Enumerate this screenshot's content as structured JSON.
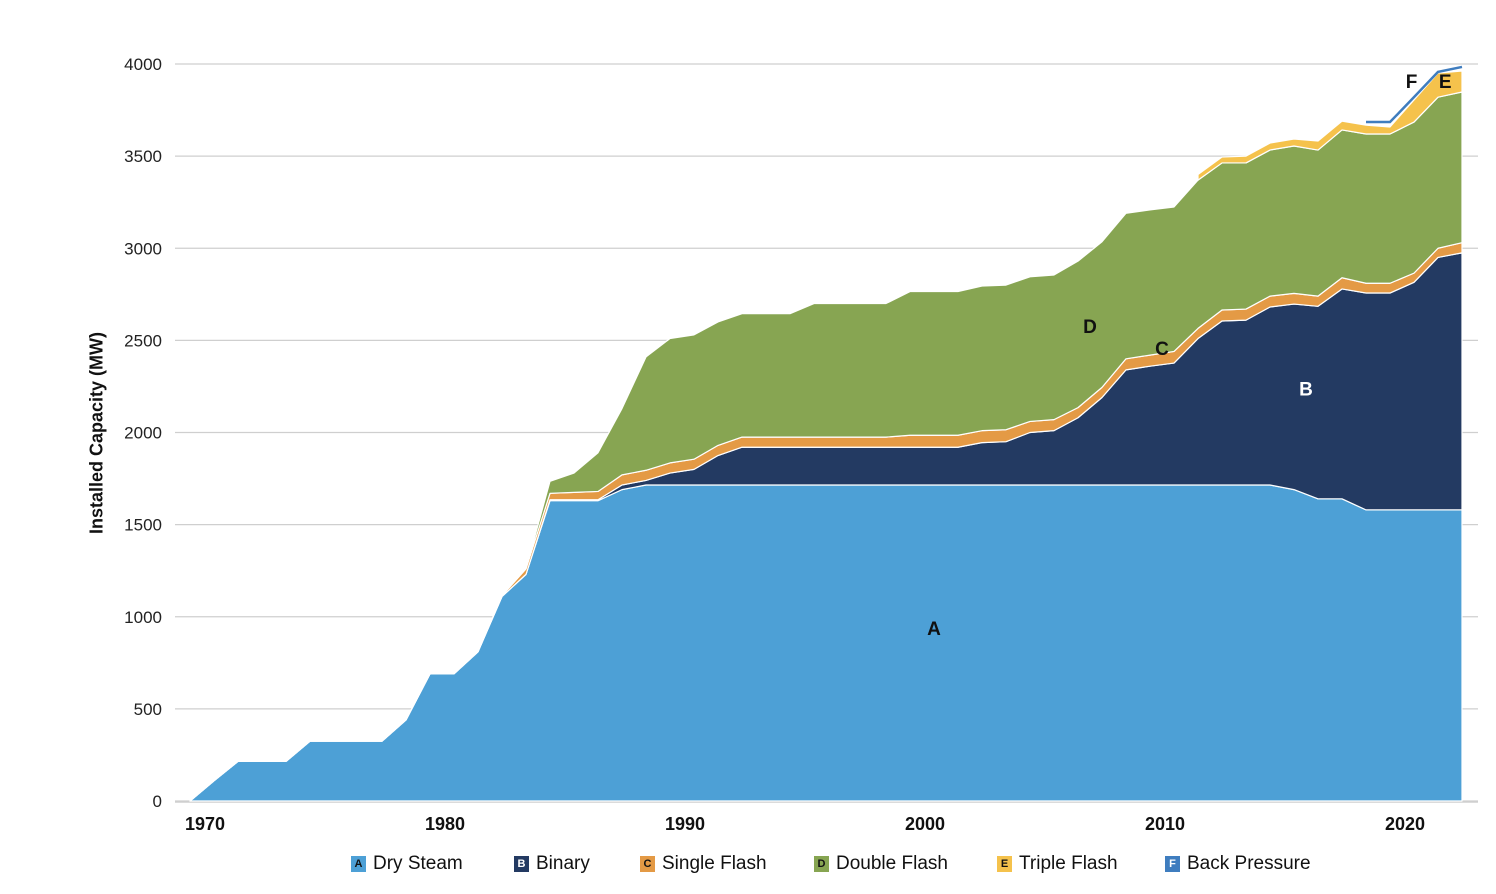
{
  "chart_data": {
    "type": "area",
    "stacked": true,
    "title": "",
    "xlabel": "",
    "ylabel": "Installed Capacity (MW)",
    "ylim": [
      0,
      4000
    ],
    "yticks": [
      0,
      500,
      1000,
      1500,
      2000,
      2500,
      3000,
      3500,
      4000
    ],
    "xticks": [
      1970,
      1980,
      1990,
      2000,
      2010,
      2020
    ],
    "grid": true,
    "legend_position": "bottom",
    "x": [
      1969,
      1970,
      1971,
      1972,
      1973,
      1974,
      1975,
      1976,
      1977,
      1978,
      1979,
      1980,
      1981,
      1982,
      1983,
      1984,
      1985,
      1986,
      1987,
      1988,
      1989,
      1990,
      1991,
      1992,
      1993,
      1994,
      1995,
      1996,
      1997,
      1998,
      1999,
      2000,
      2001,
      2002,
      2003,
      2004,
      2005,
      2006,
      2007,
      2008,
      2009,
      2010,
      2011,
      2012,
      2013,
      2014,
      2015,
      2016,
      2017,
      2018,
      2019,
      2020,
      2021,
      2022
    ],
    "series": [
      {
        "name": "Dry Steam",
        "letter": "A",
        "color": "#4da0d6",
        "label_color": "#111111",
        "values": [
          0,
          110,
          215,
          215,
          215,
          325,
          325,
          325,
          325,
          440,
          690,
          690,
          810,
          1110,
          1230,
          1630,
          1630,
          1630,
          1690,
          1715,
          1715,
          1715,
          1715,
          1715,
          1715,
          1715,
          1715,
          1715,
          1715,
          1715,
          1715,
          1715,
          1715,
          1715,
          1715,
          1715,
          1715,
          1715,
          1715,
          1715,
          1715,
          1715,
          1715,
          1715,
          1715,
          1715,
          1690,
          1640,
          1640,
          1580,
          1580,
          1580,
          1580,
          1580
        ]
      },
      {
        "name": "Binary",
        "letter": "B",
        "color": "#233a62",
        "label_color": "#ffffff",
        "values": [
          0,
          0,
          0,
          0,
          0,
          0,
          0,
          0,
          0,
          0,
          0,
          0,
          0,
          0,
          0,
          5,
          5,
          5,
          25,
          25,
          65,
          85,
          160,
          205,
          205,
          205,
          205,
          205,
          205,
          205,
          205,
          205,
          205,
          230,
          235,
          285,
          295,
          365,
          475,
          625,
          645,
          662,
          795,
          890,
          895,
          966,
          1007,
          1045,
          1139,
          1177,
          1177,
          1235,
          1370,
          1395
        ]
      },
      {
        "name": "Single Flash",
        "letter": "C",
        "color": "#e49a45",
        "label_color": "#111111",
        "values": [
          0,
          0,
          0,
          0,
          0,
          0,
          0,
          0,
          0,
          0,
          0,
          0,
          0,
          5,
          30,
          35,
          40,
          45,
          55,
          55,
          55,
          55,
          55,
          55,
          55,
          55,
          55,
          55,
          55,
          55,
          65,
          65,
          65,
          65,
          65,
          60,
          60,
          55,
          55,
          60,
          60,
          63,
          55,
          60,
          60,
          59,
          58,
          55,
          61,
          53,
          53,
          50,
          50,
          55
        ]
      },
      {
        "name": "Double Flash",
        "letter": "D",
        "color": "#87a552",
        "label_color": "#111111",
        "values": [
          0,
          0,
          0,
          0,
          0,
          0,
          0,
          0,
          0,
          0,
          0,
          0,
          0,
          0,
          0,
          65,
          105,
          210,
          360,
          615,
          675,
          675,
          670,
          670,
          670,
          670,
          725,
          725,
          725,
          725,
          780,
          780,
          780,
          785,
          785,
          785,
          785,
          795,
          790,
          790,
          788,
          784,
          805,
          798,
          793,
          793,
          800,
          793,
          802,
          810,
          810,
          820,
          820,
          818
        ]
      },
      {
        "name": "Triple Flash",
        "letter": "E",
        "color": "#f5c24c",
        "label_color": "#111111",
        "values": [
          null,
          null,
          null,
          null,
          null,
          null,
          null,
          null,
          null,
          null,
          null,
          null,
          null,
          null,
          null,
          null,
          null,
          null,
          null,
          null,
          null,
          null,
          null,
          null,
          null,
          null,
          null,
          null,
          null,
          null,
          null,
          null,
          null,
          null,
          null,
          null,
          null,
          null,
          null,
          null,
          null,
          null,
          30,
          32,
          37,
          38,
          38,
          49,
          48,
          48,
          38,
          120,
          131,
          114
        ]
      },
      {
        "name": "Back Pressure",
        "letter": "F",
        "color": "#3f7dbf",
        "label_color": "#111111",
        "values": [
          null,
          null,
          null,
          null,
          null,
          null,
          null,
          null,
          null,
          null,
          null,
          null,
          null,
          null,
          null,
          null,
          null,
          null,
          null,
          null,
          null,
          null,
          null,
          null,
          null,
          null,
          null,
          null,
          null,
          null,
          null,
          null,
          null,
          null,
          null,
          null,
          null,
          null,
          null,
          null,
          null,
          null,
          null,
          null,
          null,
          null,
          null,
          null,
          null,
          17,
          27,
          15,
          6,
          22
        ]
      }
    ],
    "annotations": [
      {
        "text": "A",
        "x": 2000,
        "y": 900
      },
      {
        "text": "B",
        "x": 2015.5,
        "y": 2200
      },
      {
        "text": "C",
        "x": 2009.5,
        "y": 2420
      },
      {
        "text": "D",
        "x": 2006.5,
        "y": 2540
      },
      {
        "text": "E",
        "x": 2021.3,
        "y": 3870
      },
      {
        "text": "F",
        "x": 2019.9,
        "y": 3870
      }
    ]
  }
}
